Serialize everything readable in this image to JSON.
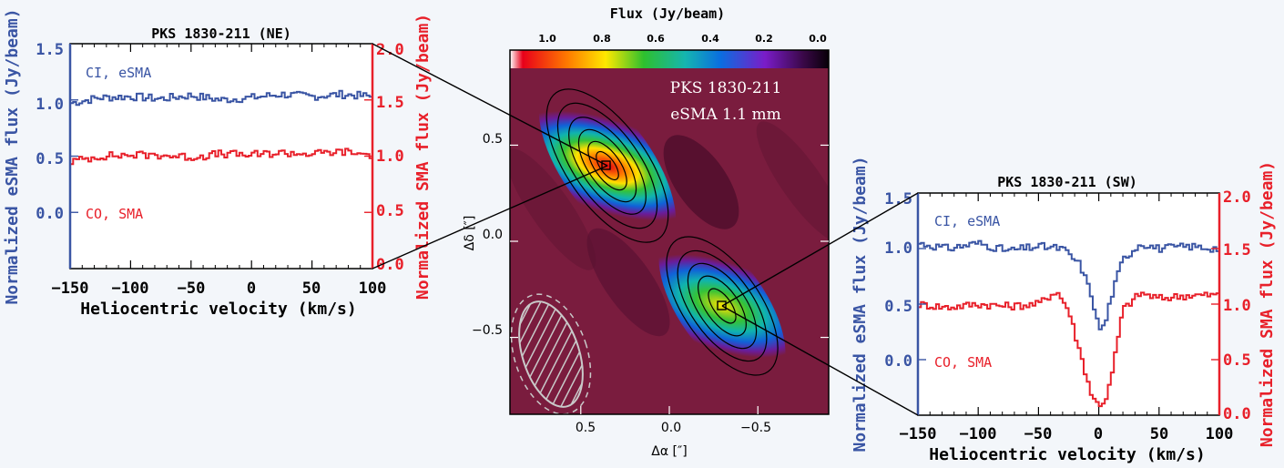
{
  "chart_data": [
    {
      "type": "line",
      "title": "PKS 1830-211 (NE)",
      "xlabel": "Heliocentric velocity (km/s)",
      "ylabel_left": "Normalized eSMA flux (Jy/beam)",
      "ylabel_right": "Normalized SMA flux (Jy/beam)",
      "xlim": [
        -150,
        100
      ],
      "ylim_left": [
        -0.5,
        1.5
      ],
      "ylim_right": [
        0.0,
        2.0
      ],
      "xticks": [
        "−150",
        "−100",
        "−50",
        "0",
        "50",
        "100"
      ],
      "yticks_left": [
        "0.0",
        "0.5",
        "1.0",
        "1.5"
      ],
      "yticks_right": [
        "0.0",
        "0.5",
        "1.0",
        "1.5",
        "2.0"
      ],
      "series": [
        {
          "name": "CI, eSMA",
          "axis": "left",
          "color": "#3a55a4",
          "x": [
            -150,
            -125,
            -100,
            -75,
            -50,
            -25,
            0,
            25,
            50,
            75,
            100
          ],
          "values": [
            0.97,
            1.02,
            1.03,
            1.01,
            1.04,
            1.0,
            1.02,
            1.05,
            1.03,
            1.05,
            1.03
          ]
        },
        {
          "name": "CO, SMA",
          "axis": "right",
          "color": "#e8202a",
          "x": [
            -150,
            -125,
            -100,
            -75,
            -50,
            -25,
            0,
            25,
            50,
            75,
            100
          ],
          "values": [
            0.95,
            1.0,
            1.01,
            1.01,
            0.99,
            1.02,
            1.01,
            1.03,
            1.02,
            1.04,
            1.01
          ]
        }
      ]
    },
    {
      "type": "heatmap",
      "title": "PKS 1830-211",
      "subtitle": "eSMA  1.1 mm",
      "xlabel": "Δα [″]",
      "ylabel": "Δδ [″]",
      "xlim": [
        0.9,
        -0.9
      ],
      "ylim": [
        -0.9,
        0.9
      ],
      "xticks": [
        "0.5",
        "0.0",
        "−0.5"
      ],
      "yticks": [
        "0.5",
        "0.0",
        "−0.5"
      ],
      "colorbar_label": "Flux (Jy/beam)",
      "colorbar_ticks": [
        "1.0",
        "0.8",
        "0.6",
        "0.4",
        "0.2",
        "0.0"
      ],
      "components": [
        {
          "name": "NE",
          "x": 0.35,
          "y": 0.35,
          "peak": 1.0
        },
        {
          "name": "SW",
          "x": -0.35,
          "y": -0.37,
          "peak": 0.8
        }
      ]
    },
    {
      "type": "line",
      "title": "PKS 1830-211 (SW)",
      "xlabel": "Heliocentric velocity (km/s)",
      "ylabel_left": "Normalized eSMA flux (Jy/beam)",
      "ylabel_right": "Normalized SMA flux (Jy/beam)",
      "xlim": [
        -150,
        100
      ],
      "ylim_left": [
        -0.5,
        1.5
      ],
      "ylim_right": [
        0.0,
        2.0
      ],
      "xticks": [
        "−150",
        "−100",
        "−50",
        "0",
        "50",
        "100"
      ],
      "yticks_left": [
        "0.0",
        "0.5",
        "1.0",
        "1.5"
      ],
      "yticks_right": [
        "0.0",
        "0.5",
        "1.0",
        "1.5",
        "2.0"
      ],
      "series": [
        {
          "name": "CI, eSMA",
          "axis": "left",
          "color": "#3a55a4",
          "x": [
            -150,
            -125,
            -100,
            -75,
            -50,
            -30,
            -15,
            -5,
            0,
            5,
            10,
            20,
            35,
            50,
            75,
            100
          ],
          "values": [
            1.05,
            1.0,
            1.05,
            0.98,
            1.02,
            1.0,
            0.85,
            0.55,
            0.28,
            0.3,
            0.55,
            0.9,
            1.05,
            1.0,
            1.02,
            1.0
          ]
        },
        {
          "name": "CO, SMA",
          "axis": "right",
          "color": "#e8202a",
          "x": [
            -150,
            -125,
            -100,
            -75,
            -50,
            -35,
            -25,
            -15,
            -5,
            0,
            5,
            10,
            20,
            35,
            50,
            75,
            100
          ],
          "values": [
            1.0,
            0.97,
            1.0,
            0.98,
            1.0,
            1.12,
            0.95,
            0.55,
            0.15,
            0.1,
            0.12,
            0.3,
            0.95,
            1.1,
            1.05,
            1.08,
            1.08
          ]
        }
      ]
    }
  ]
}
